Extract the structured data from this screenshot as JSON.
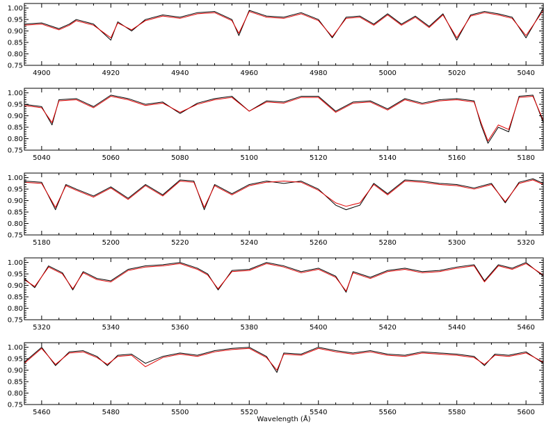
{
  "chart_data": [
    {
      "type": "line",
      "xlim": [
        4895,
        5045
      ],
      "ylim": [
        0.75,
        1.02
      ],
      "xticks": [
        "4900",
        "4920",
        "4940",
        "4960",
        "4980",
        "5000",
        "5020",
        "5040"
      ],
      "yticks": [
        "0.75",
        "0.80",
        "0.85",
        "0.90",
        "0.95",
        "1.00"
      ],
      "series": [
        {
          "color": "#000000",
          "x": [
            4895,
            4900,
            4905,
            4908,
            4910,
            4915,
            4920,
            4922,
            4926,
            4930,
            4935,
            4940,
            4945,
            4950,
            4955,
            4957,
            4960,
            4965,
            4970,
            4975,
            4980,
            4984,
            4988,
            4992,
            4996,
            5000,
            5004,
            5008,
            5012,
            5016,
            5020,
            5024,
            5028,
            5032,
            5036,
            5040,
            5045
          ],
          "y": [
            0.93,
            0.935,
            0.91,
            0.93,
            0.95,
            0.93,
            0.86,
            0.94,
            0.9,
            0.95,
            0.97,
            0.96,
            0.98,
            0.985,
            0.95,
            0.88,
            0.99,
            0.965,
            0.96,
            0.98,
            0.95,
            0.87,
            0.96,
            0.965,
            0.93,
            0.975,
            0.93,
            0.965,
            0.92,
            0.975,
            0.86,
            0.97,
            0.985,
            0.975,
            0.96,
            0.87,
            1.0
          ]
        },
        {
          "color": "#e00000",
          "x": [
            4895,
            4900,
            4905,
            4908,
            4910,
            4915,
            4920,
            4922,
            4926,
            4930,
            4935,
            4940,
            4945,
            4950,
            4955,
            4957,
            4960,
            4965,
            4970,
            4975,
            4980,
            4984,
            4988,
            4992,
            4996,
            5000,
            5004,
            5008,
            5012,
            5016,
            5020,
            5024,
            5028,
            5032,
            5036,
            5040,
            5045
          ],
          "y": [
            0.925,
            0.93,
            0.905,
            0.925,
            0.945,
            0.925,
            0.87,
            0.935,
            0.905,
            0.945,
            0.965,
            0.955,
            0.975,
            0.98,
            0.945,
            0.89,
            0.985,
            0.96,
            0.955,
            0.975,
            0.945,
            0.875,
            0.955,
            0.96,
            0.925,
            0.97,
            0.925,
            0.96,
            0.915,
            0.97,
            0.87,
            0.965,
            0.98,
            0.97,
            0.955,
            0.88,
            0.99
          ]
        }
      ]
    },
    {
      "type": "line",
      "xlim": [
        5035,
        5185
      ],
      "ylim": [
        0.75,
        1.02
      ],
      "xticks": [
        "5040",
        "5060",
        "5080",
        "5100",
        "5120",
        "5140",
        "5160",
        "5180"
      ],
      "yticks": [
        "0.75",
        "0.80",
        "0.85",
        "0.90",
        "0.95",
        "1.00"
      ],
      "series": [
        {
          "color": "#000000",
          "x": [
            5035,
            5040,
            5043,
            5045,
            5050,
            5055,
            5060,
            5065,
            5070,
            5075,
            5080,
            5085,
            5090,
            5095,
            5100,
            5105,
            5110,
            5115,
            5120,
            5125,
            5130,
            5135,
            5140,
            5145,
            5150,
            5155,
            5160,
            5165,
            5167,
            5169,
            5172,
            5175,
            5178,
            5182,
            5185
          ],
          "y": [
            0.95,
            0.94,
            0.86,
            0.97,
            0.975,
            0.94,
            0.99,
            0.975,
            0.95,
            0.96,
            0.91,
            0.955,
            0.975,
            0.985,
            0.92,
            0.965,
            0.96,
            0.985,
            0.985,
            0.92,
            0.96,
            0.965,
            0.93,
            0.975,
            0.955,
            0.97,
            0.975,
            0.965,
            0.86,
            0.78,
            0.85,
            0.83,
            0.985,
            0.99,
            0.87
          ]
        },
        {
          "color": "#e00000",
          "x": [
            5035,
            5040,
            5043,
            5045,
            5050,
            5055,
            5060,
            5065,
            5070,
            5075,
            5080,
            5085,
            5090,
            5095,
            5100,
            5105,
            5110,
            5115,
            5120,
            5125,
            5130,
            5135,
            5140,
            5145,
            5150,
            5155,
            5160,
            5165,
            5167,
            5169,
            5172,
            5175,
            5178,
            5182,
            5185
          ],
          "y": [
            0.945,
            0.935,
            0.87,
            0.965,
            0.97,
            0.935,
            0.985,
            0.97,
            0.945,
            0.955,
            0.915,
            0.95,
            0.97,
            0.98,
            0.92,
            0.96,
            0.955,
            0.98,
            0.98,
            0.915,
            0.955,
            0.96,
            0.925,
            0.97,
            0.95,
            0.965,
            0.97,
            0.96,
            0.87,
            0.79,
            0.86,
            0.84,
            0.98,
            0.985,
            0.88
          ]
        }
      ]
    },
    {
      "type": "line",
      "xlim": [
        5175,
        5325
      ],
      "ylim": [
        0.75,
        1.02
      ],
      "xticks": [
        "5180",
        "5200",
        "5220",
        "5240",
        "5260",
        "5280",
        "5300",
        "5320"
      ],
      "yticks": [
        "0.75",
        "0.80",
        "0.85",
        "0.90",
        "0.95",
        "1.00"
      ],
      "series": [
        {
          "color": "#000000",
          "x": [
            5175,
            5180,
            5184,
            5187,
            5190,
            5195,
            5200,
            5205,
            5210,
            5215,
            5220,
            5224,
            5227,
            5230,
            5235,
            5240,
            5245,
            5250,
            5255,
            5260,
            5265,
            5268,
            5272,
            5276,
            5280,
            5285,
            5290,
            5295,
            5300,
            5305,
            5310,
            5314,
            5318,
            5322,
            5325
          ],
          "y": [
            0.985,
            0.98,
            0.86,
            0.97,
            0.95,
            0.92,
            0.96,
            0.91,
            0.97,
            0.925,
            0.99,
            0.985,
            0.86,
            0.97,
            0.93,
            0.97,
            0.985,
            0.975,
            0.985,
            0.95,
            0.88,
            0.86,
            0.88,
            0.975,
            0.93,
            0.99,
            0.985,
            0.975,
            0.97,
            0.955,
            0.975,
            0.89,
            0.98,
            0.995,
            0.975
          ]
        },
        {
          "color": "#e00000",
          "x": [
            5175,
            5180,
            5184,
            5187,
            5190,
            5195,
            5200,
            5205,
            5210,
            5215,
            5220,
            5224,
            5227,
            5230,
            5235,
            5240,
            5245,
            5250,
            5255,
            5260,
            5265,
            5268,
            5272,
            5276,
            5280,
            5285,
            5290,
            5295,
            5300,
            5305,
            5310,
            5314,
            5318,
            5322,
            5325
          ],
          "y": [
            0.98,
            0.975,
            0.87,
            0.965,
            0.945,
            0.915,
            0.955,
            0.905,
            0.965,
            0.92,
            0.985,
            0.98,
            0.87,
            0.965,
            0.925,
            0.965,
            0.98,
            0.985,
            0.98,
            0.945,
            0.89,
            0.875,
            0.89,
            0.97,
            0.925,
            0.985,
            0.98,
            0.97,
            0.965,
            0.95,
            0.97,
            0.895,
            0.975,
            0.99,
            0.97
          ]
        }
      ]
    },
    {
      "type": "line",
      "xlim": [
        5315,
        5465
      ],
      "ylim": [
        0.75,
        1.02
      ],
      "xticks": [
        "5320",
        "5340",
        "5360",
        "5380",
        "5400",
        "5420",
        "5440",
        "5460"
      ],
      "yticks": [
        "0.75",
        "0.80",
        "0.85",
        "0.90",
        "0.95",
        "1.00"
      ],
      "series": [
        {
          "color": "#000000",
          "x": [
            5315,
            5318,
            5322,
            5326,
            5329,
            5332,
            5336,
            5340,
            5345,
            5350,
            5355,
            5360,
            5365,
            5368,
            5371,
            5375,
            5380,
            5385,
            5390,
            5395,
            5400,
            5405,
            5408,
            5410,
            5415,
            5420,
            5425,
            5430,
            5435,
            5440,
            5445,
            5448,
            5452,
            5456,
            5460,
            5465
          ],
          "y": [
            0.93,
            0.89,
            0.985,
            0.955,
            0.88,
            0.96,
            0.93,
            0.92,
            0.97,
            0.985,
            0.99,
            1.0,
            0.975,
            0.95,
            0.88,
            0.965,
            0.97,
            1.0,
            0.985,
            0.96,
            0.975,
            0.94,
            0.87,
            0.96,
            0.935,
            0.965,
            0.975,
            0.96,
            0.965,
            0.98,
            0.99,
            0.92,
            0.99,
            0.975,
            1.0,
            0.94
          ]
        },
        {
          "color": "#e00000",
          "x": [
            5315,
            5318,
            5322,
            5326,
            5329,
            5332,
            5336,
            5340,
            5345,
            5350,
            5355,
            5360,
            5365,
            5368,
            5371,
            5375,
            5380,
            5385,
            5390,
            5395,
            5400,
            5405,
            5408,
            5410,
            5415,
            5420,
            5425,
            5430,
            5435,
            5440,
            5445,
            5448,
            5452,
            5456,
            5460,
            5465
          ],
          "y": [
            0.925,
            0.895,
            0.98,
            0.95,
            0.885,
            0.955,
            0.925,
            0.915,
            0.965,
            0.98,
            0.985,
            0.995,
            0.97,
            0.945,
            0.885,
            0.96,
            0.965,
            0.995,
            0.98,
            0.955,
            0.97,
            0.935,
            0.875,
            0.955,
            0.93,
            0.96,
            0.97,
            0.955,
            0.96,
            0.975,
            0.985,
            0.915,
            0.985,
            0.97,
            0.995,
            0.945
          ]
        }
      ]
    },
    {
      "type": "line",
      "xlim": [
        5455,
        5605
      ],
      "ylim": [
        0.75,
        1.02
      ],
      "xticks": [
        "5460",
        "5480",
        "5500",
        "5520",
        "5540",
        "5560",
        "5580",
        "5600"
      ],
      "yticks": [
        "0.75",
        "0.80",
        "0.85",
        "0.90",
        "0.95",
        "1.00"
      ],
      "series": [
        {
          "color": "#000000",
          "x": [
            5455,
            5460,
            5464,
            5468,
            5472,
            5476,
            5479,
            5482,
            5486,
            5490,
            5495,
            5500,
            5505,
            5510,
            5515,
            5520,
            5525,
            5528,
            5530,
            5535,
            5540,
            5545,
            5550,
            5555,
            5560,
            5565,
            5570,
            5575,
            5580,
            5585,
            5588,
            5591,
            5595,
            5600,
            5605
          ],
          "y": [
            0.935,
            1.0,
            0.92,
            0.98,
            0.985,
            0.96,
            0.92,
            0.965,
            0.97,
            0.93,
            0.96,
            0.975,
            0.965,
            0.985,
            0.995,
            1.0,
            0.96,
            0.89,
            0.975,
            0.97,
            1.0,
            0.985,
            0.975,
            0.985,
            0.97,
            0.965,
            0.98,
            0.975,
            0.97,
            0.96,
            0.92,
            0.97,
            0.965,
            0.98,
            0.93
          ]
        },
        {
          "color": "#e00000",
          "x": [
            5455,
            5460,
            5464,
            5468,
            5472,
            5476,
            5479,
            5482,
            5486,
            5490,
            5495,
            5500,
            5505,
            5510,
            5515,
            5520,
            5525,
            5528,
            5530,
            5535,
            5540,
            5545,
            5550,
            5555,
            5560,
            5565,
            5570,
            5575,
            5580,
            5585,
            5588,
            5591,
            5595,
            5600,
            5605
          ],
          "y": [
            0.93,
            0.995,
            0.925,
            0.975,
            0.98,
            0.955,
            0.925,
            0.96,
            0.965,
            0.915,
            0.955,
            0.97,
            0.96,
            0.98,
            0.99,
            0.995,
            0.955,
            0.9,
            0.97,
            0.965,
            0.995,
            0.98,
            0.97,
            0.98,
            0.965,
            0.96,
            0.975,
            0.97,
            0.965,
            0.955,
            0.925,
            0.965,
            0.96,
            0.975,
            0.935
          ]
        }
      ]
    }
  ],
  "xlabel": "Wavelength  (Å)"
}
